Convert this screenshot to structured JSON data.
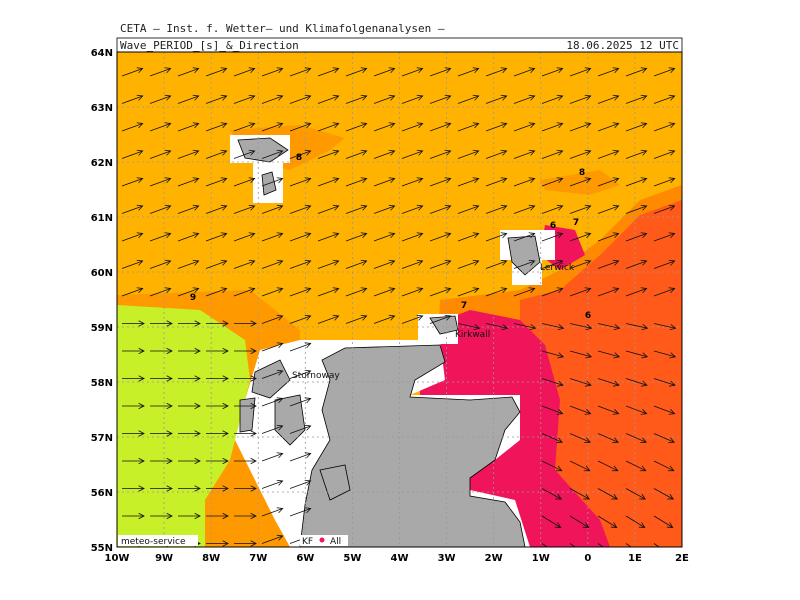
{
  "header": {
    "title": "CETA – Inst. f. Wetter– und Klimafolgenanalysen –",
    "parameter": "Wave_PERIOD_[s]_&_Direction",
    "valid_time": "18.06.2025 12 UTC"
  },
  "map": {
    "lat_labels": [
      "55N",
      "56N",
      "57N",
      "58N",
      "59N",
      "60N",
      "61N",
      "62N",
      "63N",
      "64N"
    ],
    "lon_labels": [
      "10W",
      "9W",
      "8W",
      "7W",
      "6W",
      "5W",
      "4W",
      "3W",
      "2W",
      "1W",
      "0",
      "1E",
      "2E"
    ],
    "contour_labels": [
      "8",
      "8",
      "7",
      "6",
      "7",
      "6",
      "9"
    ],
    "places": [
      "Lerwick",
      "Kirkwall",
      "Stornoway"
    ]
  },
  "footer": {
    "credit": "meteo-service",
    "model": "KF",
    "run": "All"
  }
}
